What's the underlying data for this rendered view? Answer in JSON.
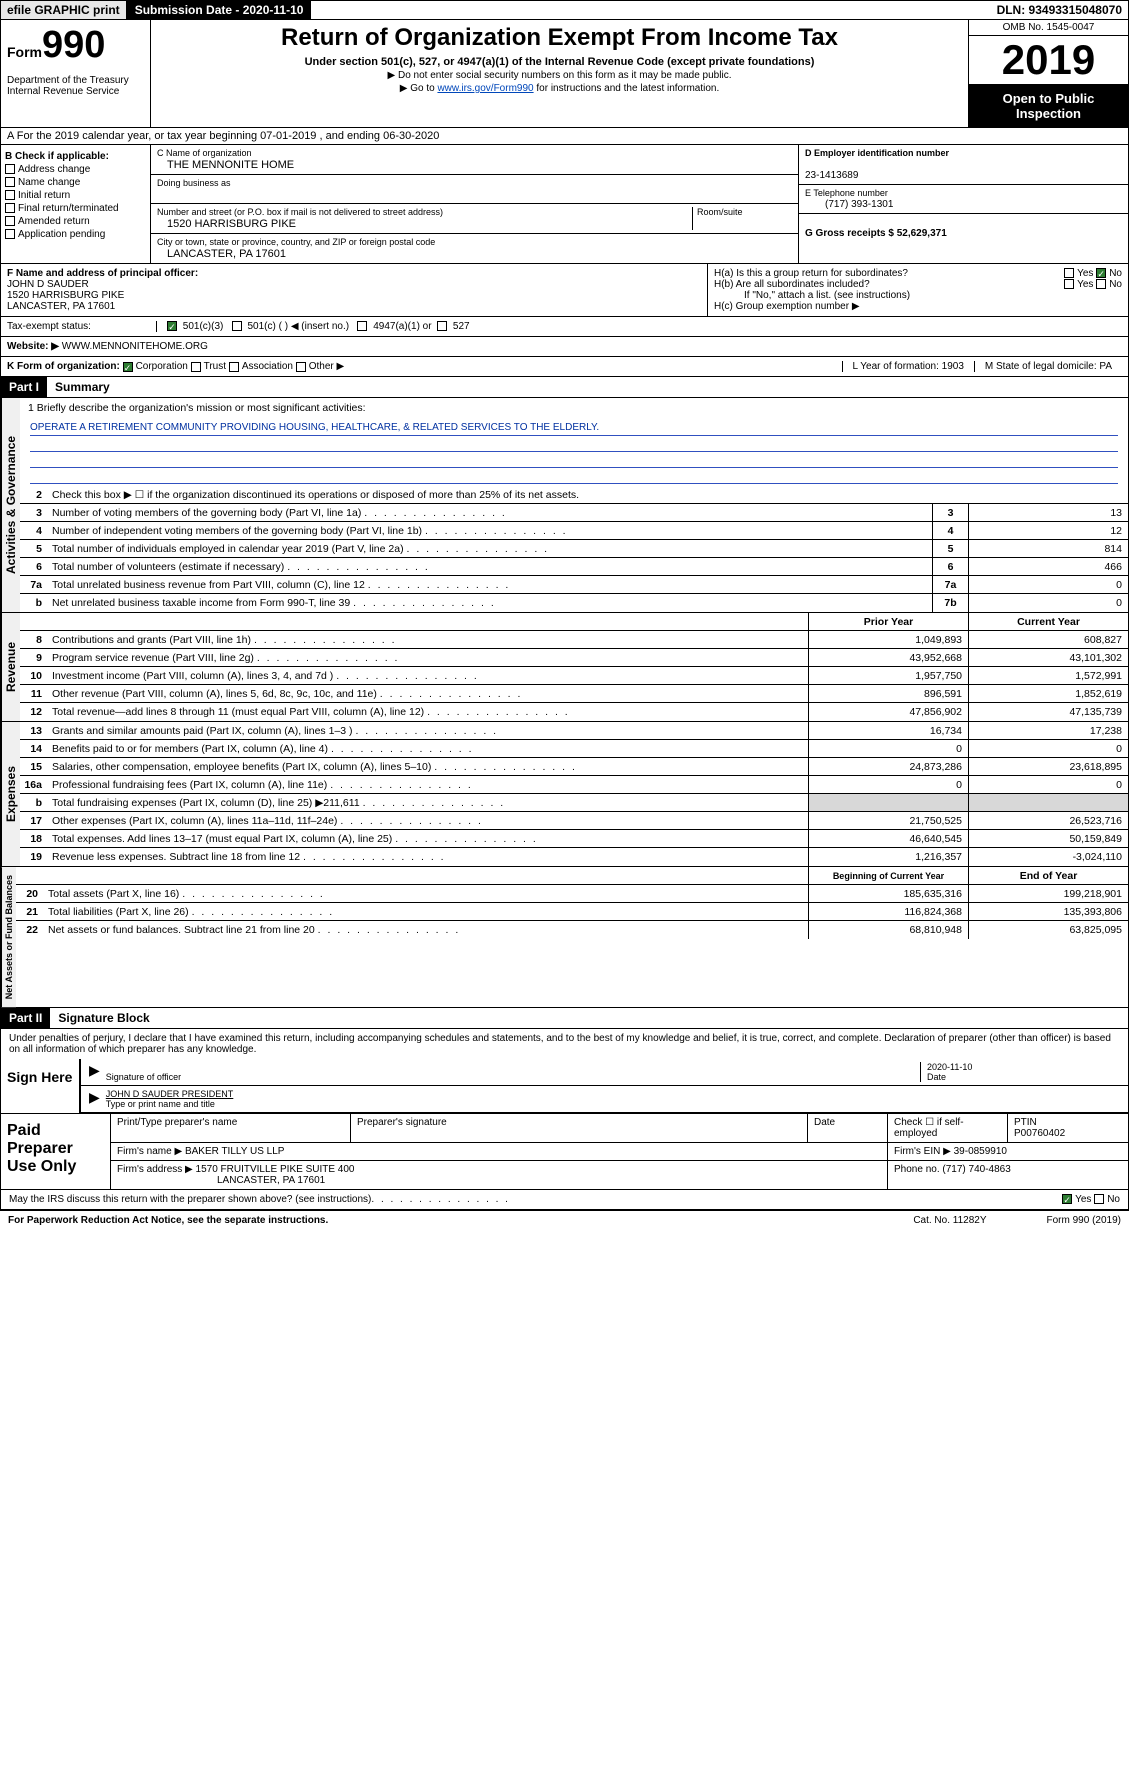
{
  "topbar": {
    "efile": "efile GRAPHIC print",
    "submission": "Submission Date - 2020-11-10",
    "dln": "DLN: 93493315048070"
  },
  "header": {
    "form_label": "Form",
    "form_num": "990",
    "dept": "Department of the Treasury Internal Revenue Service",
    "title": "Return of Organization Exempt From Income Tax",
    "subtitle": "Under section 501(c), 527, or 4947(a)(1) of the Internal Revenue Code (except private foundations)",
    "note1": "▶ Do not enter social security numbers on this form as it may be made public.",
    "note2_pre": "▶ Go to ",
    "note2_link": "www.irs.gov/Form990",
    "note2_post": " for instructions and the latest information.",
    "omb": "OMB No. 1545-0047",
    "year": "2019",
    "open": "Open to Public Inspection"
  },
  "section_a": "A For the 2019 calendar year, or tax year beginning 07-01-2019    , and ending 06-30-2020",
  "col_b": {
    "header": "B Check if applicable:",
    "items": [
      "Address change",
      "Name change",
      "Initial return",
      "Final return/terminated",
      "Amended return",
      "Application pending"
    ]
  },
  "org": {
    "c_label": "C Name of organization",
    "name": "THE MENNONITE HOME",
    "dba_label": "Doing business as",
    "addr_label": "Number and street (or P.O. box if mail is not delivered to street address)",
    "room_label": "Room/suite",
    "addr": "1520 HARRISBURG PIKE",
    "city_label": "City or town, state or province, country, and ZIP or foreign postal code",
    "city": "LANCASTER, PA  17601"
  },
  "right_info": {
    "d_label": "D Employer identification number",
    "ein": "23-1413689",
    "e_label": "E Telephone number",
    "phone": "(717) 393-1301",
    "g_label": "G Gross receipts $ 52,629,371"
  },
  "f_section": {
    "label": "F  Name and address of principal officer:",
    "name": "JOHN D SAUDER",
    "addr1": "1520 HARRISBURG PIKE",
    "addr2": "LANCASTER, PA  17601"
  },
  "h_section": {
    "ha": "H(a)  Is this a group return for subordinates?",
    "hb": "H(b)  Are all subordinates included?",
    "hb_note": "If \"No,\" attach a list. (see instructions)",
    "hc": "H(c)  Group exemption number ▶",
    "yes": "Yes",
    "no": "No"
  },
  "tax_status": {
    "label": "Tax-exempt status:",
    "opt1": "501(c)(3)",
    "opt2": "501(c) (   ) ◀ (insert no.)",
    "opt3": "4947(a)(1) or",
    "opt4": "527"
  },
  "website": {
    "label": "Website: ▶",
    "url": "WWW.MENNONITEHOME.ORG"
  },
  "k_row": {
    "k": "K Form of organization:",
    "corp": "Corporation",
    "trust": "Trust",
    "assoc": "Association",
    "other": "Other ▶",
    "l": "L Year of formation: 1903",
    "m": "M State of legal domicile: PA"
  },
  "part1": {
    "header": "Part I",
    "title": "Summary"
  },
  "mission": {
    "label": "1  Briefly describe the organization's mission or most significant activities:",
    "text": "OPERATE A RETIREMENT COMMUNITY PROVIDING HOUSING, HEALTHCARE, & RELATED SERVICES TO THE ELDERLY."
  },
  "line2": "Check this box ▶ ☐  if the organization discontinued its operations or disposed of more than 25% of its net assets.",
  "governance_label": "Activities & Governance",
  "gov_lines": [
    {
      "n": "3",
      "d": "Number of voting members of the governing body (Part VI, line 1a)",
      "box": "3",
      "v": "13"
    },
    {
      "n": "4",
      "d": "Number of independent voting members of the governing body (Part VI, line 1b)",
      "box": "4",
      "v": "12"
    },
    {
      "n": "5",
      "d": "Total number of individuals employed in calendar year 2019 (Part V, line 2a)",
      "box": "5",
      "v": "814"
    },
    {
      "n": "6",
      "d": "Total number of volunteers (estimate if necessary)",
      "box": "6",
      "v": "466"
    },
    {
      "n": "7a",
      "d": "Total unrelated business revenue from Part VIII, column (C), line 12",
      "box": "7a",
      "v": "0"
    },
    {
      "n": "b",
      "d": "Net unrelated business taxable income from Form 990-T, line 39",
      "box": "7b",
      "v": "0"
    }
  ],
  "col_headers": {
    "prior": "Prior Year",
    "current": "Current Year"
  },
  "revenue_label": "Revenue",
  "rev_lines": [
    {
      "n": "8",
      "d": "Contributions and grants (Part VIII, line 1h)",
      "p": "1,049,893",
      "c": "608,827"
    },
    {
      "n": "9",
      "d": "Program service revenue (Part VIII, line 2g)",
      "p": "43,952,668",
      "c": "43,101,302"
    },
    {
      "n": "10",
      "d": "Investment income (Part VIII, column (A), lines 3, 4, and 7d )",
      "p": "1,957,750",
      "c": "1,572,991"
    },
    {
      "n": "11",
      "d": "Other revenue (Part VIII, column (A), lines 5, 6d, 8c, 9c, 10c, and 11e)",
      "p": "896,591",
      "c": "1,852,619"
    },
    {
      "n": "12",
      "d": "Total revenue—add lines 8 through 11 (must equal Part VIII, column (A), line 12)",
      "p": "47,856,902",
      "c": "47,135,739"
    }
  ],
  "expenses_label": "Expenses",
  "exp_lines": [
    {
      "n": "13",
      "d": "Grants and similar amounts paid (Part IX, column (A), lines 1–3 )",
      "p": "16,734",
      "c": "17,238"
    },
    {
      "n": "14",
      "d": "Benefits paid to or for members (Part IX, column (A), line 4)",
      "p": "0",
      "c": "0"
    },
    {
      "n": "15",
      "d": "Salaries, other compensation, employee benefits (Part IX, column (A), lines 5–10)",
      "p": "24,873,286",
      "c": "23,618,895"
    },
    {
      "n": "16a",
      "d": "Professional fundraising fees (Part IX, column (A), line 11e)",
      "p": "0",
      "c": "0"
    },
    {
      "n": "b",
      "d": "Total fundraising expenses (Part IX, column (D), line 25) ▶211,611",
      "p": "",
      "c": "",
      "shaded": true
    },
    {
      "n": "17",
      "d": "Other expenses (Part IX, column (A), lines 11a–11d, 11f–24e)",
      "p": "21,750,525",
      "c": "26,523,716"
    },
    {
      "n": "18",
      "d": "Total expenses. Add lines 13–17 (must equal Part IX, column (A), line 25)",
      "p": "46,640,545",
      "c": "50,159,849"
    },
    {
      "n": "19",
      "d": "Revenue less expenses. Subtract line 18 from line 12",
      "p": "1,216,357",
      "c": "-3,024,110"
    }
  ],
  "net_label": "Net Assets or Fund Balances",
  "net_headers": {
    "begin": "Beginning of Current Year",
    "end": "End of Year"
  },
  "net_lines": [
    {
      "n": "20",
      "d": "Total assets (Part X, line 16)",
      "p": "185,635,316",
      "c": "199,218,901"
    },
    {
      "n": "21",
      "d": "Total liabilities (Part X, line 26)",
      "p": "116,824,368",
      "c": "135,393,806"
    },
    {
      "n": "22",
      "d": "Net assets or fund balances. Subtract line 21 from line 20",
      "p": "68,810,948",
      "c": "63,825,095"
    }
  ],
  "part2": {
    "header": "Part II",
    "title": "Signature Block"
  },
  "sig_text": "Under penalties of perjury, I declare that I have examined this return, including accompanying schedules and statements, and to the best of my knowledge and belief, it is true, correct, and complete. Declaration of preparer (other than officer) is based on all information of which preparer has any knowledge.",
  "sign_here": "Sign Here",
  "sig_officer_label": "Signature of officer",
  "sig_date": "2020-11-10",
  "sig_date_label": "Date",
  "sig_name": "JOHN D SAUDER  PRESIDENT",
  "sig_name_label": "Type or print name and title",
  "paid_prep": "Paid Preparer Use Only",
  "prep": {
    "h1": "Print/Type preparer's name",
    "h2": "Preparer's signature",
    "h3": "Date",
    "h4": "Check ☐ if self-employed",
    "h5": "PTIN",
    "ptin": "P00760402",
    "firm_label": "Firm's name      ▶",
    "firm": "BAKER TILLY US LLP",
    "ein_label": "Firm's EIN ▶",
    "ein": "39-0859910",
    "addr_label": "Firm's address ▶",
    "addr": "1570 FRUITVILLE PIKE SUITE 400",
    "addr2": "LANCASTER, PA  17601",
    "phone_label": "Phone no.",
    "phone": "(717) 740-4863"
  },
  "discuss": "May the IRS discuss this return with the preparer shown above? (see instructions)",
  "footer": {
    "left": "For Paperwork Reduction Act Notice, see the separate instructions.",
    "mid": "Cat. No. 11282Y",
    "right": "Form 990 (2019)"
  }
}
